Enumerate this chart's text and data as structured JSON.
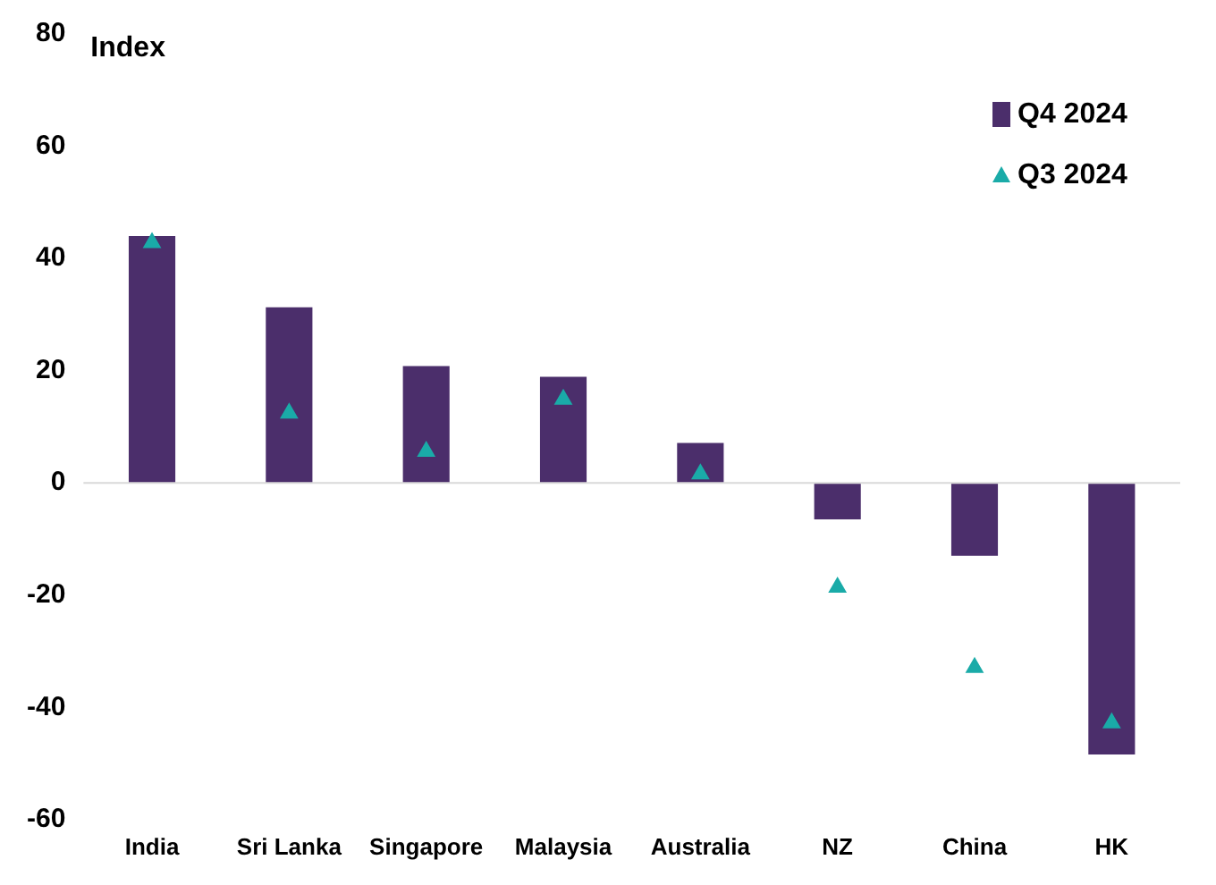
{
  "chart_data": {
    "type": "bar",
    "ylabel": "Index",
    "categories": [
      "India",
      "Sri Lanka",
      "Singapore",
      "Malaysia",
      "Australia",
      "NZ",
      "China",
      "HK"
    ],
    "series": [
      {
        "name": "Q4 2024",
        "color": "#4b2e6b",
        "values": [
          44,
          31.3,
          20.8,
          18.9,
          7.1,
          -6.5,
          -13,
          -48.4
        ]
      },
      {
        "name": "Q3 2024",
        "type": "scatter",
        "color": "#1aaba8",
        "values": [
          42.8,
          12.4,
          5.6,
          14.9,
          1.6,
          -18.6,
          -32.9,
          -42.8
        ]
      }
    ],
    "ylim": [
      -60,
      80
    ],
    "yticks": [
      -60,
      -40,
      -20,
      0,
      20,
      40,
      60,
      80
    ],
    "grid": false,
    "ref_lines": [
      {
        "axis": "y",
        "value": 0,
        "color": "#d9d9d9"
      }
    ],
    "legend": "top right",
    "marker": "triangle"
  }
}
